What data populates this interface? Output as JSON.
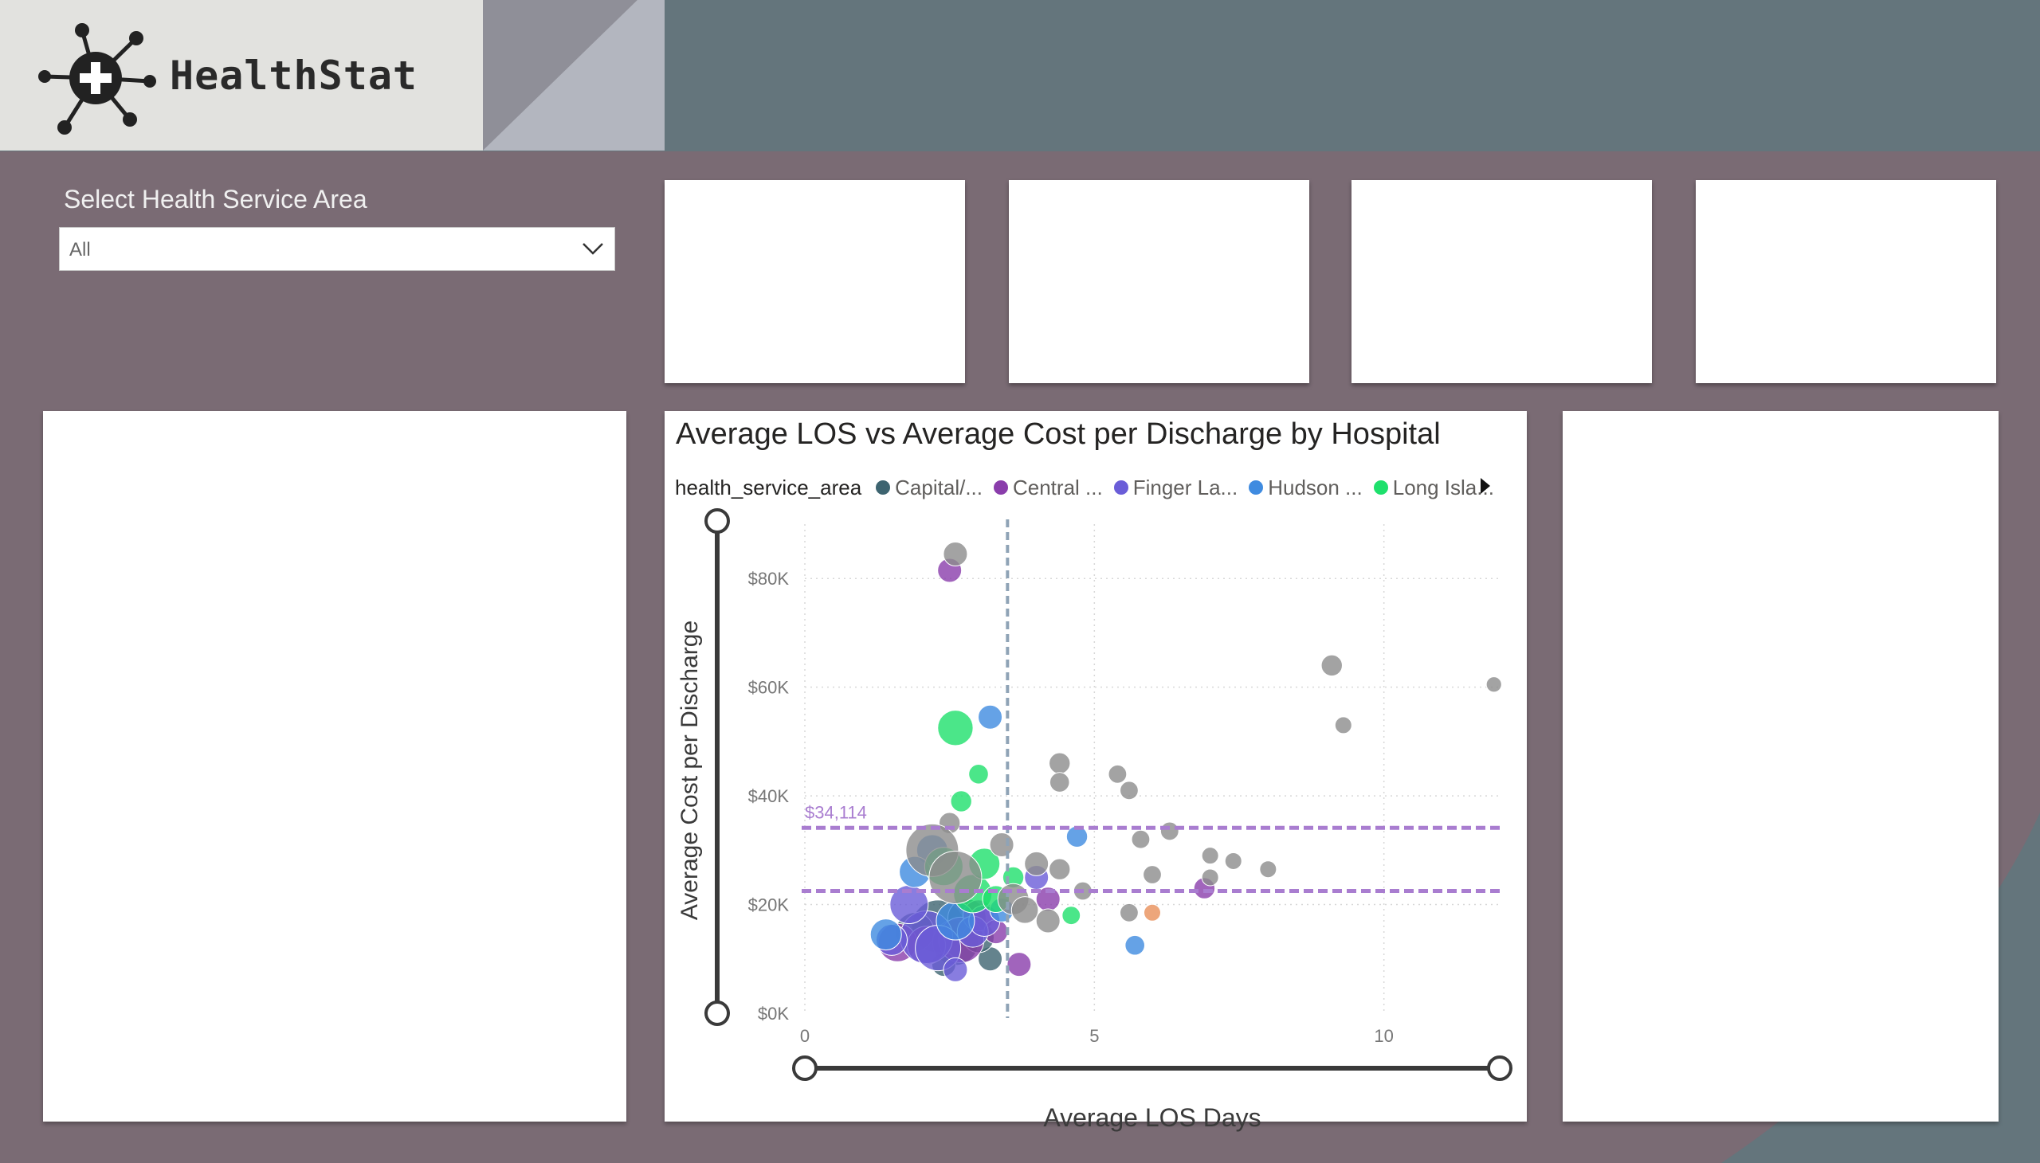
{
  "brand": {
    "name": "HealthStat",
    "logo_icon": "medical-cross-network-icon"
  },
  "slicer": {
    "title": "Select Health Service Area",
    "value": "All",
    "chevron_icon": "chevron-down-icon"
  },
  "kpi_cards": [
    {},
    {},
    {},
    {}
  ],
  "colors": {
    "page_bg": "#64757c",
    "content_bg": "#7a6b74",
    "accent_purple": "#a97dd0",
    "avg_line": "#8fa3b6"
  },
  "legend": {
    "title": "health_service_area",
    "items": [
      {
        "label": "Capital/...",
        "color": "#3d6470"
      },
      {
        "label": "Central ...",
        "color": "#8a3dab"
      },
      {
        "label": "Finger La...",
        "color": "#6a5dd8"
      },
      {
        "label": "Hudson ...",
        "color": "#3f8be0"
      },
      {
        "label": "Long Isla...",
        "color": "#1ee06c"
      }
    ],
    "more_icon": "caret-right-icon"
  },
  "chart_data": {
    "type": "scatter",
    "title": "Average LOS vs Average Cost per Discharge by Hospital",
    "xlabel": "Average LOS Days",
    "ylabel": "Average Cost per Discharge",
    "xlim": [
      0,
      12
    ],
    "ylim": [
      0,
      90000
    ],
    "x_ticks": [
      "0",
      "5",
      "10"
    ],
    "y_ticks": [
      "$0K",
      "$20K",
      "$40K",
      "$60K",
      "$80K"
    ],
    "grid": true,
    "legend_position": "top",
    "reference_lines": [
      {
        "axis": "x",
        "value": 3.5,
        "label": ""
      },
      {
        "axis": "y",
        "value": 34114,
        "label": "$34,114"
      },
      {
        "axis": "y",
        "value": 22500,
        "label": ""
      }
    ],
    "series": [
      {
        "name": "Capital/...",
        "color": "#3d6470",
        "points": [
          [
            2.3,
            16000,
            3
          ],
          [
            2.6,
            13000,
            2.5
          ],
          [
            1.9,
            15000,
            2
          ],
          [
            2.8,
            17500,
            2
          ],
          [
            3.2,
            10000,
            1
          ],
          [
            2.4,
            9000,
            1
          ],
          [
            3.0,
            14000,
            1.5
          ]
        ]
      },
      {
        "name": "Central ...",
        "color": "#8a3dab",
        "points": [
          [
            2.5,
            81500,
            1
          ],
          [
            2.7,
            13500,
            2.5
          ],
          [
            1.6,
            13000,
            2
          ],
          [
            3.0,
            18000,
            1.5
          ],
          [
            3.7,
            9000,
            1
          ],
          [
            4.2,
            21000,
            1
          ],
          [
            2.1,
            12500,
            2
          ],
          [
            3.3,
            15000,
            1
          ],
          [
            6.9,
            23000,
            0.8
          ]
        ]
      },
      {
        "name": "Finger La...",
        "color": "#6a5dd8",
        "points": [
          [
            2.1,
            14000,
            3
          ],
          [
            1.8,
            20000,
            2
          ],
          [
            2.3,
            12000,
            2.5
          ],
          [
            2.6,
            8000,
            1
          ],
          [
            2.9,
            15000,
            1.5
          ],
          [
            1.5,
            13500,
            1.5
          ],
          [
            3.1,
            17000,
            1.5
          ],
          [
            4.0,
            25000,
            1
          ]
        ]
      },
      {
        "name": "Hudson ...",
        "color": "#3f8be0",
        "points": [
          [
            3.2,
            54500,
            1
          ],
          [
            2.2,
            30000,
            1.5
          ],
          [
            2.6,
            17000,
            2
          ],
          [
            1.4,
            14500,
            1.5
          ],
          [
            4.7,
            32500,
            0.8
          ],
          [
            5.7,
            12500,
            0.7
          ],
          [
            1.9,
            26000,
            1.5
          ],
          [
            3.4,
            19000,
            1
          ]
        ]
      },
      {
        "name": "Long Isla...",
        "color": "#1ee06c",
        "points": [
          [
            2.6,
            52500,
            1.8
          ],
          [
            3.0,
            44000,
            0.7
          ],
          [
            2.7,
            39000,
            0.8
          ],
          [
            2.4,
            27000,
            2
          ],
          [
            2.9,
            22000,
            2
          ],
          [
            3.1,
            27500,
            1.5
          ],
          [
            3.6,
            25000,
            0.8
          ],
          [
            4.6,
            18000,
            0.6
          ],
          [
            3.3,
            21000,
            1.2
          ]
        ]
      },
      {
        "name": "",
        "color": "#8c8c8c",
        "points": [
          [
            2.6,
            84500,
            1
          ],
          [
            4.4,
            46000,
            0.8
          ],
          [
            4.4,
            42500,
            0.7
          ],
          [
            5.4,
            44000,
            0.6
          ],
          [
            5.6,
            41000,
            0.6
          ],
          [
            9.1,
            64000,
            0.8
          ],
          [
            9.3,
            53000,
            0.5
          ],
          [
            11.9,
            60500,
            0.4
          ],
          [
            2.5,
            35000,
            0.8
          ],
          [
            3.4,
            31000,
            1
          ],
          [
            5.8,
            32000,
            0.6
          ],
          [
            6.3,
            33500,
            0.6
          ],
          [
            7.0,
            29000,
            0.5
          ],
          [
            7.4,
            28000,
            0.5
          ],
          [
            8.0,
            26500,
            0.5
          ],
          [
            2.2,
            30000,
            3
          ],
          [
            2.6,
            25000,
            3
          ],
          [
            3.6,
            21000,
            1.5
          ],
          [
            4.4,
            26500,
            0.8
          ],
          [
            4.0,
            27500,
            1
          ],
          [
            4.8,
            22500,
            0.6
          ],
          [
            5.6,
            18500,
            0.6
          ],
          [
            6.0,
            25500,
            0.6
          ],
          [
            3.8,
            19000,
            1.2
          ],
          [
            4.2,
            17000,
            1
          ],
          [
            7.0,
            25000,
            0.5
          ]
        ]
      },
      {
        "name": "",
        "color": "#e8905a",
        "points": [
          [
            6.0,
            18500,
            0.5
          ]
        ]
      }
    ]
  }
}
